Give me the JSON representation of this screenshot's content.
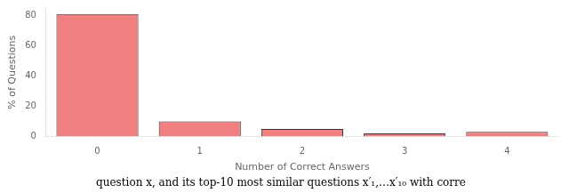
{
  "chart_data": {
    "type": "bar",
    "categories": [
      "0",
      "1",
      "2",
      "3",
      "4"
    ],
    "values": [
      81,
      10,
      5,
      2,
      3
    ],
    "color": "#F08080",
    "xlabel": "Number of Correct Answers",
    "ylabel": "% of Questions",
    "ylim": [
      0,
      85
    ],
    "yticks": [
      0,
      20,
      40,
      60,
      80
    ],
    "grid": false,
    "annotations": [
      "question x, and its top-10 most similar questions x′₁,…x′₁₀ with corre"
    ]
  }
}
